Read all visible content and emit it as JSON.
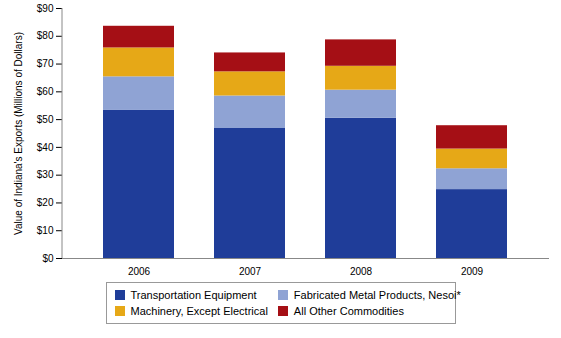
{
  "chart_data": {
    "type": "bar",
    "stacked": true,
    "grid": false,
    "legend": "bottom",
    "y_label": "Value of Indiana's Exports (Millions of Dollars)",
    "categories": [
      "2006",
      "2007",
      "2008",
      "2009"
    ],
    "ylim": [
      0,
      90
    ],
    "yticks": [
      {
        "value": 0,
        "label": "$0"
      },
      {
        "value": 10,
        "label": "$10"
      },
      {
        "value": 20,
        "label": "$20"
      },
      {
        "value": 30,
        "label": "$30"
      },
      {
        "value": 40,
        "label": "$40"
      },
      {
        "value": 50,
        "label": "$50"
      },
      {
        "value": 60,
        "label": "$60"
      },
      {
        "value": 70,
        "label": "$70"
      },
      {
        "value": 80,
        "label": "$80"
      },
      {
        "value": 90,
        "label": "$90"
      }
    ],
    "series": [
      {
        "name": "Transportation Equipment",
        "color": "#1f3d99",
        "values": [
          53.3,
          46.8,
          50.5,
          24.8
        ]
      },
      {
        "name": "Fabricated Metal Products, Nesoi*",
        "color": "#8fa3d4",
        "values": [
          12.1,
          11.7,
          10.1,
          7.5
        ]
      },
      {
        "name": "Machinery, Except Electrical",
        "color": "#e6a817",
        "values": [
          10.4,
          8.7,
          8.6,
          7.1
        ]
      },
      {
        "name": "All Other Commodities",
        "color": "#a50f15",
        "values": [
          7.8,
          6.8,
          9.5,
          8.4
        ]
      }
    ]
  }
}
